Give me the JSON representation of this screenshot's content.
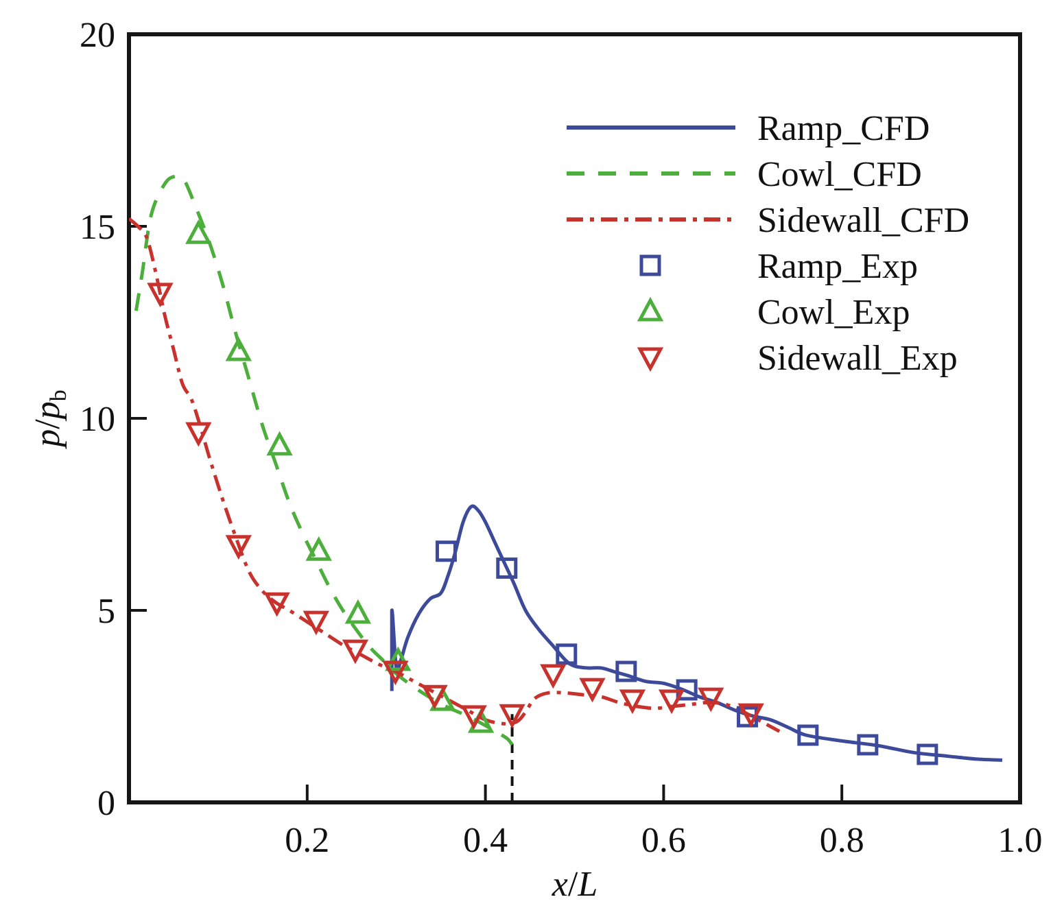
{
  "chart_data": {
    "type": "line",
    "title": "",
    "xlabel": "x/L",
    "ylabel": "p/p_b",
    "xlabel_parts": {
      "a": "x",
      "sep": "/",
      "b": "L"
    },
    "ylabel_parts": {
      "a": "p",
      "sep": "/",
      "b": "p",
      "sub": "b"
    },
    "xlim": [
      0.0,
      1.0
    ],
    "ylim": [
      0,
      20
    ],
    "x_ticks": [
      0.2,
      0.4,
      0.6,
      0.8,
      1.0
    ],
    "x_tick_labels": [
      "0.2",
      "0.4",
      "0.6",
      "0.8",
      "1.0"
    ],
    "y_ticks": [
      0,
      5,
      10,
      15,
      20
    ],
    "y_tick_labels": [
      "0",
      "5",
      "10",
      "15",
      "20"
    ],
    "grid": false,
    "legend_position": "top-right",
    "reference_line": {
      "x": 0.43,
      "y_range": [
        0,
        2.3
      ],
      "style": "dashed",
      "color": "#111111"
    },
    "series": [
      {
        "name": "Ramp_CFD",
        "kind": "line",
        "style": "solid",
        "color": "#3d4a9a",
        "x": [
          0.295,
          0.295,
          0.3,
          0.305,
          0.313,
          0.325,
          0.338,
          0.35,
          0.358,
          0.366,
          0.375,
          0.384,
          0.392,
          0.4,
          0.41,
          0.42,
          0.432,
          0.445,
          0.46,
          0.475,
          0.49,
          0.5,
          0.515,
          0.53,
          0.545,
          0.56,
          0.58,
          0.6,
          0.62,
          0.64,
          0.66,
          0.68,
          0.7,
          0.72,
          0.74,
          0.76,
          0.8,
          0.84,
          0.88,
          0.92,
          0.95,
          0.98
        ],
        "y": [
          2.9,
          5.0,
          3.5,
          3.7,
          4.3,
          4.9,
          5.3,
          5.45,
          5.9,
          6.5,
          7.3,
          7.7,
          7.6,
          7.3,
          6.8,
          6.3,
          5.7,
          5.0,
          4.5,
          4.1,
          3.7,
          3.55,
          3.5,
          3.5,
          3.4,
          3.3,
          3.15,
          3.1,
          2.95,
          2.75,
          2.6,
          2.4,
          2.25,
          2.15,
          1.95,
          1.75,
          1.6,
          1.48,
          1.3,
          1.2,
          1.13,
          1.1
        ]
      },
      {
        "name": "Cowl_CFD",
        "kind": "line",
        "style": "dashed",
        "color": "#4caf3c",
        "x": [
          0.008,
          0.015,
          0.025,
          0.04,
          0.052,
          0.062,
          0.075,
          0.09,
          0.105,
          0.12,
          0.135,
          0.15,
          0.165,
          0.18,
          0.195,
          0.21,
          0.225,
          0.24,
          0.255,
          0.27,
          0.285,
          0.3,
          0.32,
          0.34,
          0.36,
          0.38,
          0.4,
          0.415,
          0.425,
          0.43
        ],
        "y": [
          12.8,
          13.8,
          15.3,
          16.1,
          16.3,
          16.2,
          15.5,
          14.6,
          13.5,
          12.2,
          11.0,
          9.8,
          8.8,
          7.8,
          7.0,
          6.3,
          5.6,
          5.0,
          4.5,
          4.05,
          3.7,
          3.35,
          3.0,
          2.7,
          2.45,
          2.25,
          2.0,
          1.8,
          1.65,
          1.5
        ]
      },
      {
        "name": "Sidewall_CFD",
        "kind": "line",
        "style": "dashdot",
        "color": "#c8322d",
        "x": [
          0.0,
          0.01,
          0.02,
          0.03,
          0.04,
          0.05,
          0.06,
          0.07,
          0.08,
          0.09,
          0.105,
          0.12,
          0.135,
          0.15,
          0.165,
          0.18,
          0.2,
          0.22,
          0.24,
          0.26,
          0.28,
          0.3,
          0.32,
          0.34,
          0.36,
          0.38,
          0.4,
          0.42,
          0.435,
          0.445,
          0.455,
          0.47,
          0.49,
          0.51,
          0.53,
          0.55,
          0.57,
          0.59,
          0.61,
          0.63,
          0.65,
          0.67,
          0.69,
          0.71,
          0.73
        ],
        "y": [
          15.2,
          15.0,
          14.7,
          13.8,
          12.7,
          11.8,
          10.9,
          10.5,
          9.8,
          9.0,
          7.9,
          6.9,
          6.0,
          5.5,
          5.2,
          5.0,
          4.7,
          4.4,
          4.1,
          3.85,
          3.6,
          3.4,
          3.15,
          2.9,
          2.65,
          2.4,
          2.15,
          2.05,
          2.1,
          2.35,
          2.7,
          2.85,
          2.85,
          2.8,
          2.75,
          2.6,
          2.5,
          2.45,
          2.5,
          2.55,
          2.6,
          2.55,
          2.35,
          2.1,
          1.85
        ]
      },
      {
        "name": "Ramp_Exp",
        "kind": "scatter",
        "marker": "square",
        "color": "#3d4a9a",
        "x": [
          0.356,
          0.424,
          0.491,
          0.558,
          0.626,
          0.694,
          0.762,
          0.829,
          0.896
        ],
        "y": [
          6.54,
          6.1,
          3.86,
          3.41,
          2.93,
          2.23,
          1.75,
          1.5,
          1.25
        ]
      },
      {
        "name": "Cowl_Exp",
        "kind": "scatter",
        "marker": "triangle-up",
        "color": "#4caf3c",
        "x": [
          0.078,
          0.123,
          0.169,
          0.213,
          0.257,
          0.302,
          0.352,
          0.395
        ],
        "y": [
          14.8,
          11.75,
          9.29,
          6.55,
          4.91,
          3.68,
          2.64,
          2.07
        ]
      },
      {
        "name": "Sidewall_Exp",
        "kind": "scatter",
        "marker": "triangle-down",
        "color": "#c8322d",
        "x": [
          0.035,
          0.078,
          0.123,
          0.166,
          0.21,
          0.254,
          0.299,
          0.343,
          0.387,
          0.43,
          0.476,
          0.52,
          0.565,
          0.609,
          0.653,
          0.698
        ],
        "y": [
          13.27,
          9.64,
          6.7,
          5.21,
          4.73,
          3.98,
          3.43,
          2.8,
          2.27,
          2.3,
          3.34,
          2.98,
          2.68,
          2.68,
          2.73,
          2.32
        ]
      }
    ]
  }
}
